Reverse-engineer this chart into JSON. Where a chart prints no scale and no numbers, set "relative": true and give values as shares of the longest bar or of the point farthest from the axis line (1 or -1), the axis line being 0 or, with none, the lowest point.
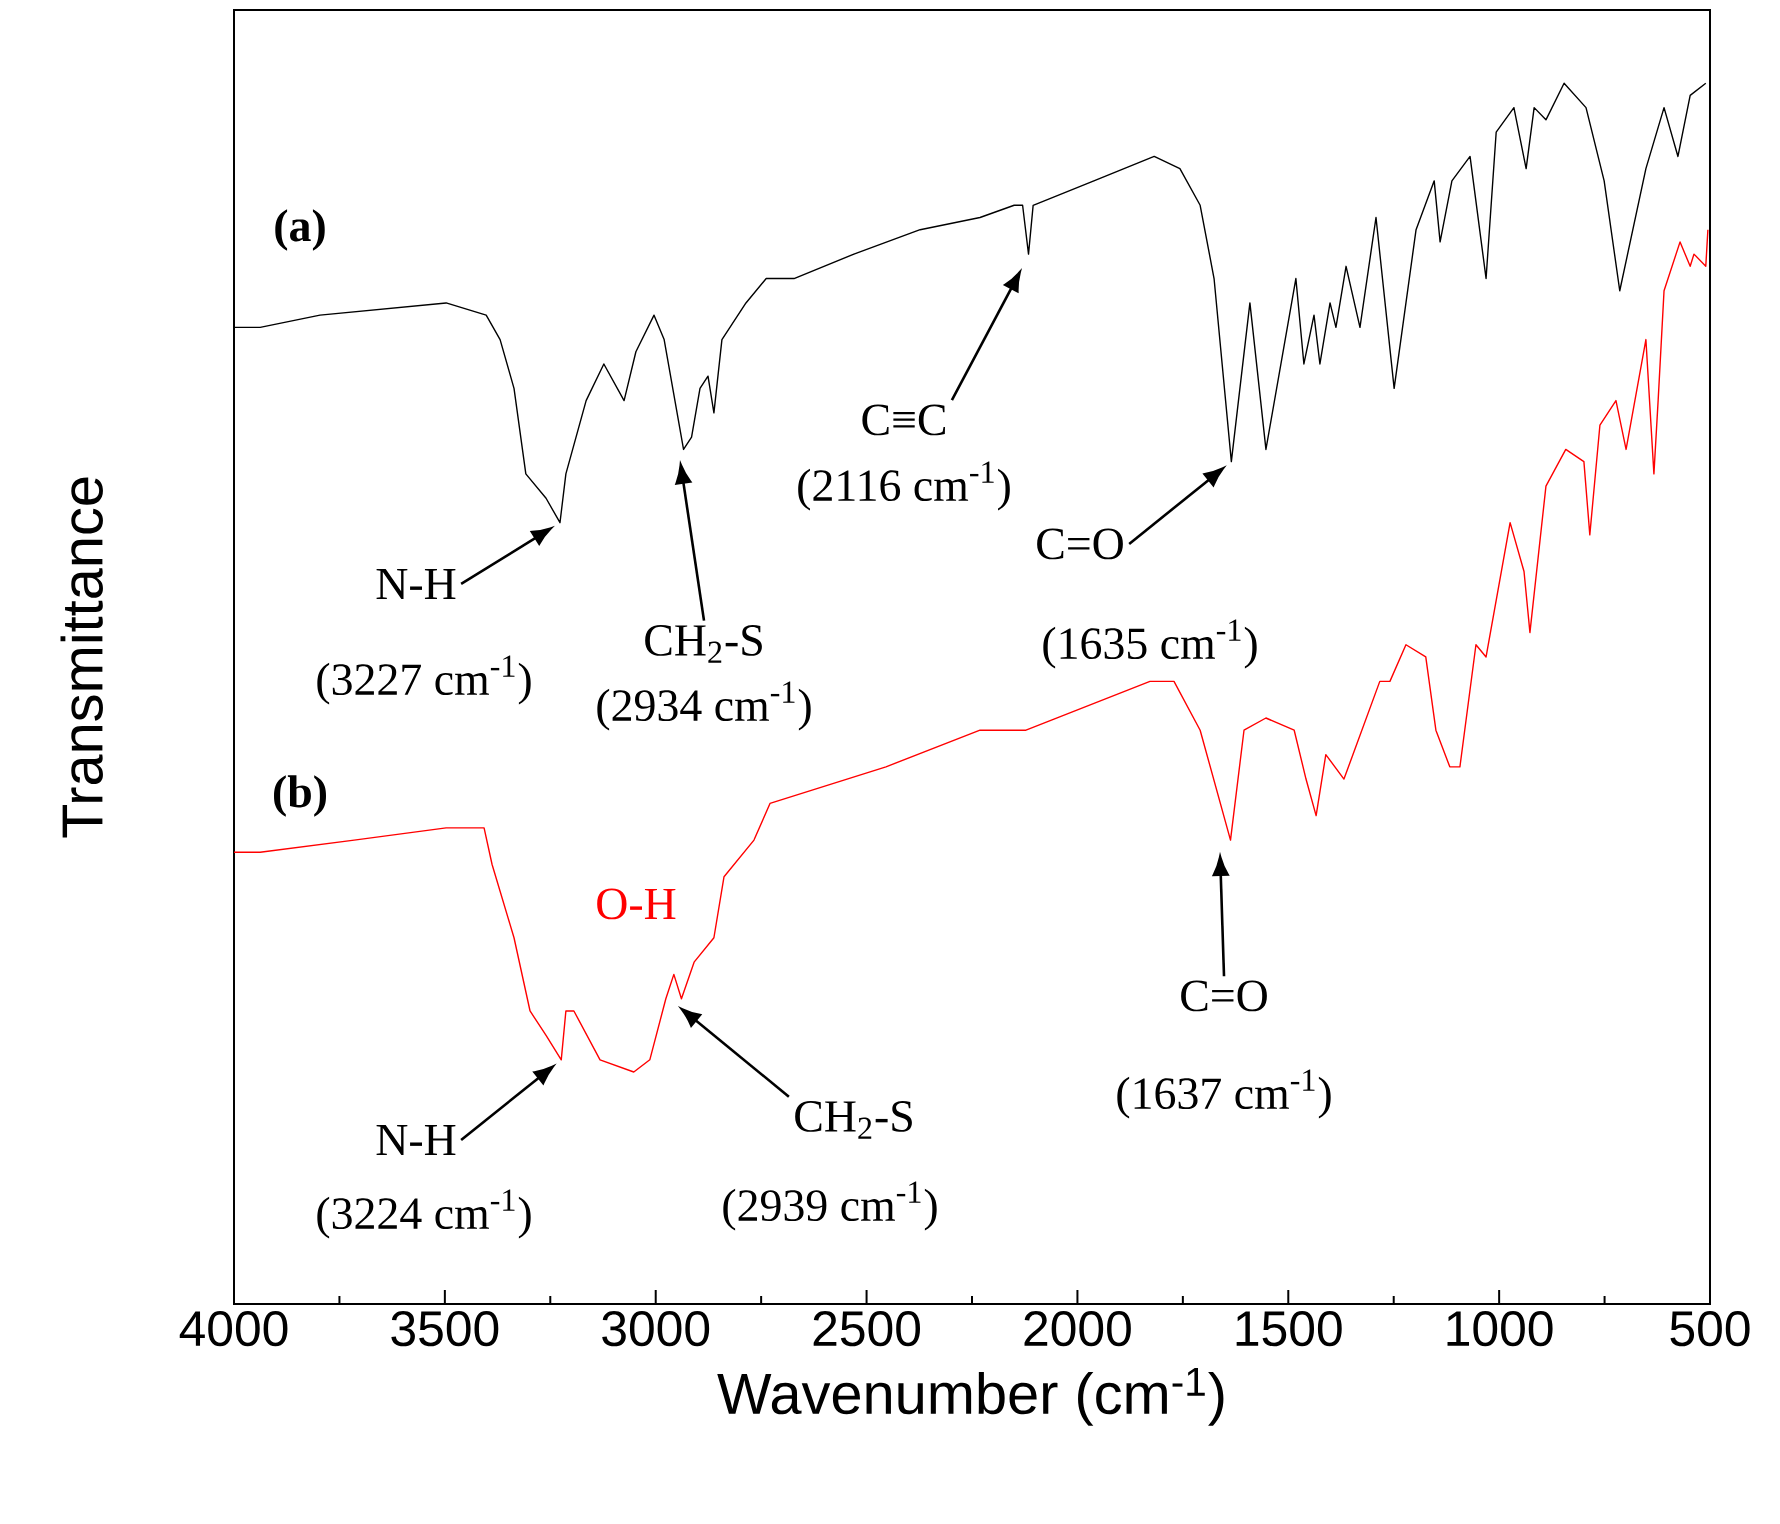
{
  "chart_data": {
    "type": "line",
    "relative": true,
    "xlabel": "Wavenumber (cm$^{-1}$)",
    "ylabel": "Transmittance",
    "xlim": [
      4000,
      500
    ],
    "xticks": [
      4000,
      3500,
      3000,
      2500,
      2000,
      1500,
      1000,
      500
    ],
    "tick_labels": "x",
    "marker": "none",
    "line_style": "solid",
    "series": [
      {
        "color": "#000000",
        "x": [
          4000,
          3938,
          3796,
          3497,
          3402,
          3369,
          3336,
          3308,
          3260,
          3227,
          3213,
          3165,
          3123,
          3075,
          3047,
          3004,
          2980,
          2934,
          2915,
          2895,
          2876,
          2862,
          2843,
          2786,
          2738,
          2672,
          2530,
          2373,
          2231,
          2150,
          2130,
          2116,
          2105,
          1961,
          1818,
          1757,
          1709,
          1676,
          1635,
          1591,
          1553,
          1482,
          1463,
          1439,
          1425,
          1401,
          1387,
          1363,
          1330,
          1292,
          1249,
          1197,
          1154,
          1140,
          1112,
          1069,
          1031,
          1007,
          965,
          936,
          917,
          889,
          846,
          794,
          751,
          714,
          652,
          609,
          576,
          547,
          510
        ],
        "values": [
          0.8,
          0.8,
          0.81,
          0.82,
          0.81,
          0.79,
          0.75,
          0.68,
          0.66,
          0.64,
          0.68,
          0.74,
          0.77,
          0.74,
          0.78,
          0.81,
          0.79,
          0.7,
          0.71,
          0.75,
          0.76,
          0.73,
          0.79,
          0.82,
          0.84,
          0.84,
          0.86,
          0.88,
          0.89,
          0.9,
          0.9,
          0.86,
          0.9,
          0.92,
          0.94,
          0.93,
          0.9,
          0.84,
          0.69,
          0.82,
          0.7,
          0.84,
          0.77,
          0.81,
          0.77,
          0.82,
          0.8,
          0.85,
          0.8,
          0.89,
          0.75,
          0.88,
          0.92,
          0.87,
          0.92,
          0.94,
          0.84,
          0.96,
          0.98,
          0.93,
          0.98,
          0.97,
          1.0,
          0.98,
          0.92,
          0.83,
          0.93,
          0.98,
          0.94,
          0.99,
          1.0
        ]
      },
      {
        "color": "#ff0000",
        "x": [
          4000,
          3938,
          3715,
          3497,
          3407,
          3388,
          3336,
          3298,
          3260,
          3224,
          3213,
          3194,
          3132,
          3052,
          3014,
          2976,
          2957,
          2939,
          2909,
          2862,
          2838,
          2767,
          2729,
          2454,
          2231,
          2122,
          1828,
          1771,
          1709,
          1637,
          1605,
          1553,
          1486,
          1458,
          1434,
          1411,
          1368,
          1283,
          1259,
          1221,
          1174,
          1150,
          1117,
          1093,
          1055,
          1031,
          974,
          941,
          927,
          889,
          842,
          799,
          785,
          761,
          723,
          699,
          652,
          633,
          623,
          609,
          571,
          547,
          538,
          510,
          505
        ],
        "values": [
          0.37,
          0.37,
          0.38,
          0.39,
          0.39,
          0.36,
          0.3,
          0.24,
          0.22,
          0.2,
          0.24,
          0.24,
          0.2,
          0.19,
          0.2,
          0.25,
          0.27,
          0.25,
          0.28,
          0.3,
          0.35,
          0.38,
          0.41,
          0.44,
          0.47,
          0.47,
          0.51,
          0.51,
          0.47,
          0.38,
          0.47,
          0.48,
          0.47,
          0.43,
          0.4,
          0.45,
          0.43,
          0.51,
          0.51,
          0.54,
          0.53,
          0.47,
          0.44,
          0.44,
          0.54,
          0.53,
          0.64,
          0.6,
          0.55,
          0.67,
          0.7,
          0.69,
          0.63,
          0.72,
          0.74,
          0.7,
          0.79,
          0.68,
          0.74,
          0.83,
          0.87,
          0.85,
          0.86,
          0.85,
          0.88
        ]
      }
    ],
    "annotations": [
      "(a)",
      "(b)",
      {
        "text": "N-H",
        "x": 3227,
        "y": 0.64
      },
      "(3227 cm$^{-1}$)",
      "CH$_{2}$-S",
      "(2934 cm$^{-1}$)",
      "C≡C",
      "(2116 cm$^{-1}$)",
      {
        "text": "C=O",
        "x": 1635,
        "y": 0.69
      },
      "(1635 cm$^{-1}$)",
      {
        "text": "N-H",
        "x": 3224,
        "y": 0.2
      },
      "(3224 cm$^{-1}$)",
      "O-H",
      "CH$_{2}$-S",
      "(2939 cm$^{-1}$)",
      "C=O",
      "(1637 cm$^{-1}$)"
    ]
  }
}
